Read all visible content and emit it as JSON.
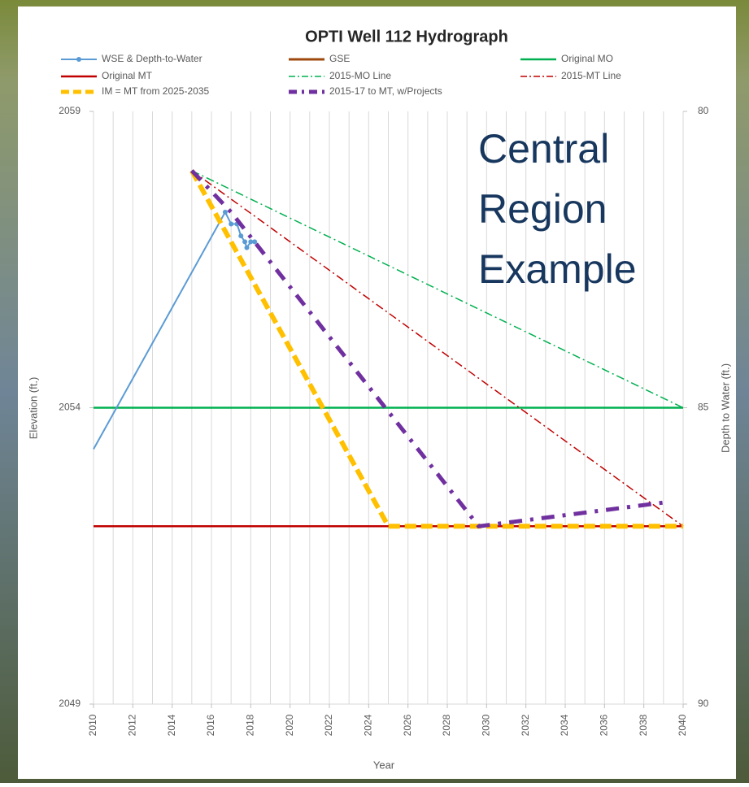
{
  "chart_data": {
    "type": "line",
    "title": "OPTI Well 112 Hydrograph",
    "xlabel": "Year",
    "ylabel": "Elevation (ft.)",
    "y2label": "Depth to Water (ft.)",
    "annotation": [
      "Central",
      "Region",
      "Example"
    ],
    "xlim": [
      2010,
      2040
    ],
    "xticks": [
      2010,
      2012,
      2014,
      2016,
      2018,
      2020,
      2022,
      2024,
      2026,
      2028,
      2030,
      2032,
      2034,
      2036,
      2038,
      2040
    ],
    "xgrid": [
      2010,
      2011,
      2012,
      2013,
      2014,
      2015,
      2016,
      2017,
      2018,
      2019,
      2020,
      2021,
      2022,
      2023,
      2024,
      2025,
      2026,
      2027,
      2028,
      2029,
      2030,
      2031,
      2032,
      2033,
      2034,
      2035,
      2036,
      2037,
      2038,
      2039,
      2040
    ],
    "ylim": [
      2049,
      2059
    ],
    "yticks": [
      2049,
      2054,
      2059
    ],
    "y2lim": [
      80,
      90
    ],
    "y2ticks": [
      80,
      85,
      90
    ],
    "y2_inverted": true,
    "series": [
      {
        "name": "WSE & Depth-to-Water",
        "color": "#5b9bd5",
        "style": "solid",
        "width": 2,
        "marker": "circle",
        "x": [
          2010,
          2016.7,
          2017.0,
          2017.3,
          2017.5,
          2017.7,
          2017.8,
          2018.0,
          2018.2
        ],
        "values": [
          2053.3,
          2057.3,
          2057.1,
          2057.1,
          2056.9,
          2056.8,
          2056.7,
          2056.8,
          2056.8
        ]
      },
      {
        "name": "GSE",
        "color": "#9e480e",
        "style": "solid",
        "width": 3,
        "x": [],
        "values": []
      },
      {
        "name": "Original MO",
        "color": "#00b050",
        "style": "solid",
        "width": 2.5,
        "x": [
          2010,
          2040
        ],
        "values": [
          2054,
          2054
        ]
      },
      {
        "name": "Original MT",
        "color": "#c00000",
        "style": "solid",
        "width": 2.5,
        "x": [
          2010,
          2040
        ],
        "values": [
          2052,
          2052
        ]
      },
      {
        "name": "2015-MO Line",
        "color": "#00b050",
        "style": "dash-dot",
        "width": 1.5,
        "x": [
          2015,
          2040
        ],
        "values": [
          2058,
          2054
        ]
      },
      {
        "name": "2015-MT Line",
        "color": "#c00000",
        "style": "dash-dot",
        "width": 1.5,
        "x": [
          2015,
          2040
        ],
        "values": [
          2058,
          2052
        ]
      },
      {
        "name": "IM = MT from 2025-2035",
        "color": "#ffc000",
        "style": "dashed",
        "width": 6,
        "x": [
          2015,
          2025,
          2040
        ],
        "values": [
          2058,
          2052,
          2052
        ]
      },
      {
        "name": "2015-17 to MT, w/Projects",
        "color": "#7030a0",
        "style": "dash-dot-thick",
        "width": 5,
        "x": [
          2015,
          2017,
          2029.6,
          2039
        ],
        "values": [
          2058,
          2057.3,
          2052,
          2052.4
        ]
      }
    ]
  }
}
